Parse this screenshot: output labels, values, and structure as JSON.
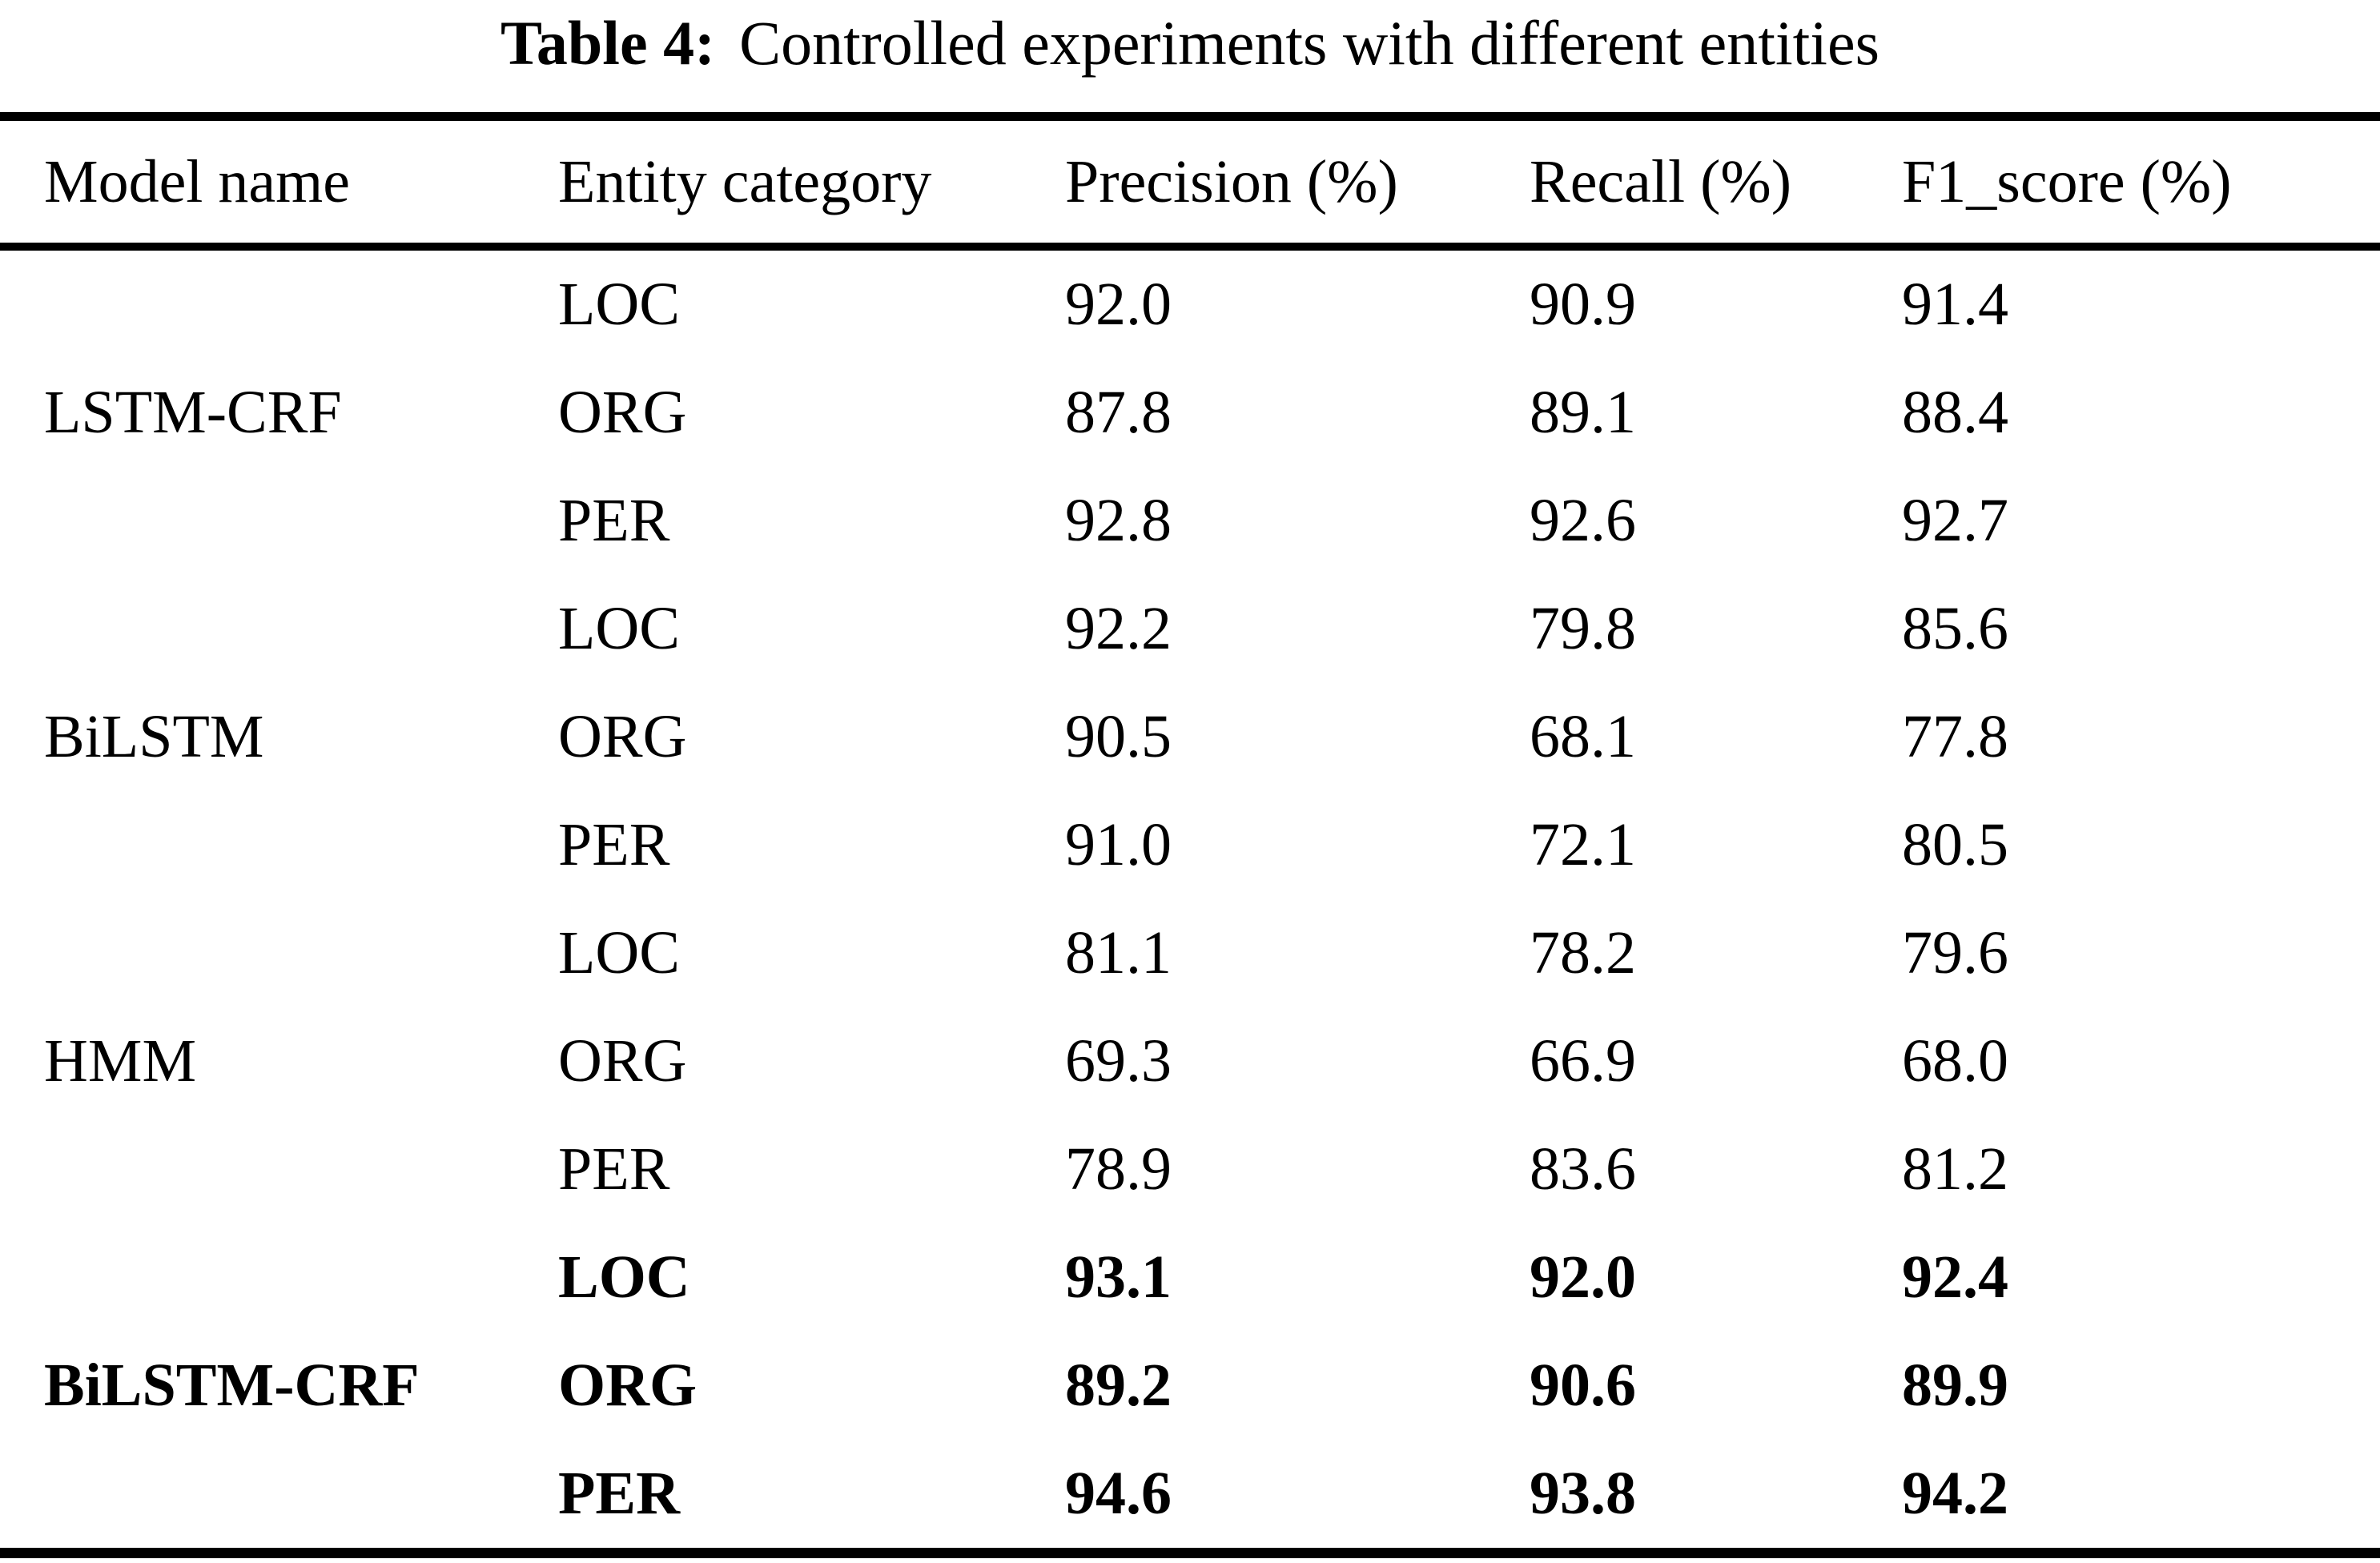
{
  "title": {
    "tag": "Table 4:",
    "caption": "Controlled experiments with different entities"
  },
  "table": {
    "columns": [
      "Model name",
      "Entity category",
      "Precision (%)",
      "Recall (%)",
      "F1_score (%)"
    ],
    "rows": [
      {
        "model": "",
        "entity": "LOC",
        "precision": "92.0",
        "recall": "90.9",
        "f1": "91.4"
      },
      {
        "model": "LSTM-CRF",
        "entity": "ORG",
        "precision": "87.8",
        "recall": "89.1",
        "f1": "88.4"
      },
      {
        "model": "",
        "entity": "PER",
        "precision": "92.8",
        "recall": "92.6",
        "f1": "92.7"
      },
      {
        "model": "",
        "entity": "LOC",
        "precision": "92.2",
        "recall": "79.8",
        "f1": "85.6"
      },
      {
        "model": "BiLSTM",
        "entity": "ORG",
        "precision": "90.5",
        "recall": "68.1",
        "f1": "77.8"
      },
      {
        "model": "",
        "entity": "PER",
        "precision": "91.0",
        "recall": "72.1",
        "f1": "80.5"
      },
      {
        "model": "",
        "entity": "LOC",
        "precision": "81.1",
        "recall": "78.2",
        "f1": "79.6"
      },
      {
        "model": "HMM",
        "entity": "ORG",
        "precision": "69.3",
        "recall": "66.9",
        "f1": "68.0"
      },
      {
        "model": "",
        "entity": "PER",
        "precision": "78.9",
        "recall": "83.6",
        "f1": "81.2"
      },
      {
        "model": "",
        "entity": "LOC",
        "precision": "93.1",
        "recall": "92.0",
        "f1": "92.4"
      },
      {
        "model": "BiLSTM-CRF",
        "entity": "ORG",
        "precision": "89.2",
        "recall": "90.6",
        "f1": "89.9"
      },
      {
        "model": "",
        "entity": "PER",
        "precision": "94.6",
        "recall": "93.8",
        "f1": "94.2"
      }
    ]
  },
  "colors": {
    "background": "#ffffff",
    "text": "#000000",
    "rule": "#000000"
  }
}
